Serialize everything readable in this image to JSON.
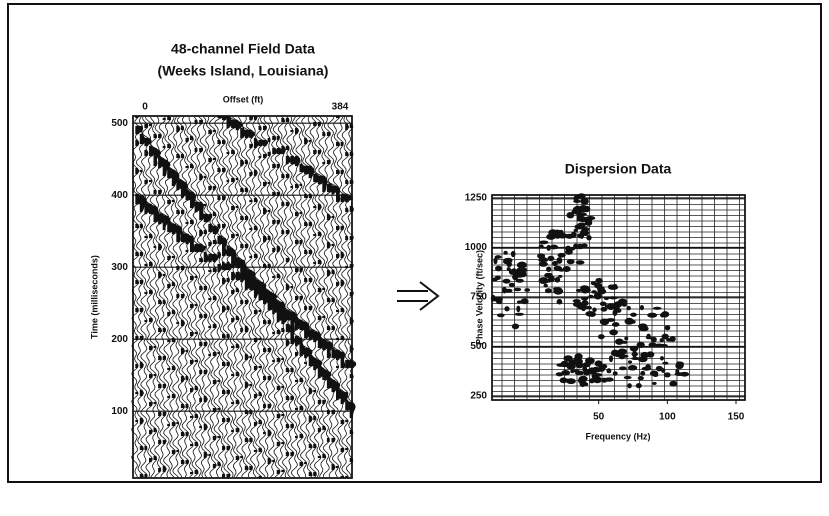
{
  "chart_data": [
    {
      "type": "wiggle",
      "title": "48-channel Field Data",
      "subtitle": "(Weeks Island, Louisiana)",
      "x_label": "Offset (ft)",
      "y_label": "Time (milliseconds)",
      "xlim": [
        0,
        384
      ],
      "xticks": [
        0,
        384
      ],
      "ylim": [
        5,
        510
      ],
      "yticks": [
        100,
        200,
        300,
        400,
        500
      ],
      "grid": true
    },
    {
      "type": "dispersion",
      "title": "Dispersion Data",
      "x_label": "Frequency (Hz)",
      "y_label": "Phase Velocity (ft/sec)",
      "xlim": [
        0,
        150
      ],
      "xticks": [
        50,
        100,
        150
      ],
      "ylim": [
        250,
        1250
      ],
      "yticks": [
        250,
        500,
        750,
        1000,
        1250
      ],
      "grid": true
    }
  ]
}
